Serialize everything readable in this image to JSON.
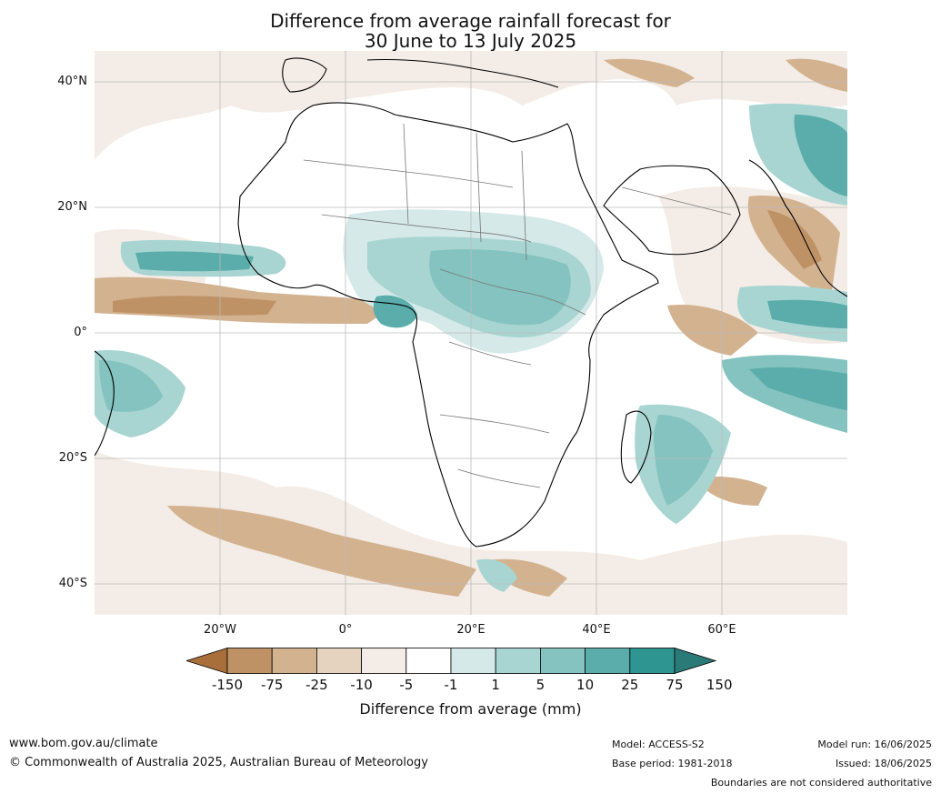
{
  "title_line1": "Difference from average rainfall forecast for",
  "title_line2": "30 June to 13 July 2025",
  "lat_labels": [
    "40°N",
    "20°N",
    "0°",
    "20°S",
    "40°S"
  ],
  "lon_labels": [
    "20°W",
    "0°",
    "20°E",
    "40°E",
    "60°E"
  ],
  "colorbar": {
    "colors": [
      "#a86f3a",
      "#bf9266",
      "#d3b290",
      "#e5d2bf",
      "#f4ece6",
      "#ffffff",
      "#d4e9e8",
      "#a8d5d2",
      "#84c3bf",
      "#5aadaa",
      "#2e9591",
      "#2a7a78"
    ],
    "labels": [
      "-150",
      "-75",
      "-25",
      "-10",
      "-5",
      "-1",
      "1",
      "5",
      "10",
      "25",
      "75",
      "150"
    ],
    "title": "Difference from average (mm)"
  },
  "footer": {
    "url": "www.bom.gov.au/climate",
    "copyright": "© Commonwealth of Australia 2025, Australian Bureau of Meteorology",
    "model": "Model: ACCESS-S2",
    "base_period": "Base period: 1981-2018",
    "model_run": "Model run: 16/06/2025",
    "issued": "Issued: 18/06/2025",
    "disclaimer": "Boundaries are not considered authoritative"
  }
}
